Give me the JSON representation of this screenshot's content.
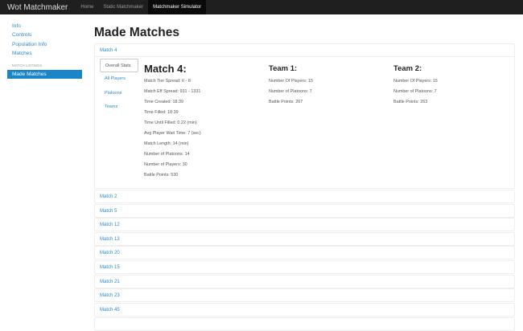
{
  "navbar": {
    "brand": "Wot Matchmaker",
    "links": [
      "Home",
      "Static Matchmaker",
      "Matchmaker Simulator"
    ],
    "active": 2
  },
  "sidebar": {
    "items": [
      "Info",
      "Controls",
      "Population Info",
      "Matches"
    ],
    "section": "MATCH LISTINGS",
    "active_item": "Made Matches"
  },
  "page_title": "Made Matches",
  "expanded": {
    "header": "Match 4",
    "tabs": [
      "Overall Stats",
      "All Players",
      "Platoons",
      "Teams"
    ],
    "match": {
      "title": "Match 4:",
      "stats": [
        "Match Tier Spread: 6 - 8",
        "Match Eff Spread: 931 - 1331",
        "Time Created: 18:39",
        "Time Filled: 18:39",
        "Time Until Filled: 0.22 (min)",
        "Avg Player Wait Time: 7 (sec)",
        "Match Length: 14 (min)",
        "Number of Platoons: 14",
        "Number of Players: 30",
        "Battle Points: 530"
      ]
    },
    "team1": {
      "title": "Team 1:",
      "stats": [
        "Number Of Players: 15",
        "Number of Platoons: 7",
        "Battle Points: 267"
      ]
    },
    "team2": {
      "title": "Team 2:",
      "stats": [
        "Number Of Players: 15",
        "Number of Platoons: 7",
        "Battle Points: 263"
      ]
    }
  },
  "matches": [
    "Match 2",
    "Match 5",
    "Match 12",
    "Match 13",
    "Match 20",
    "Match 15",
    "Match 21",
    "Match 23",
    "Match 45"
  ]
}
